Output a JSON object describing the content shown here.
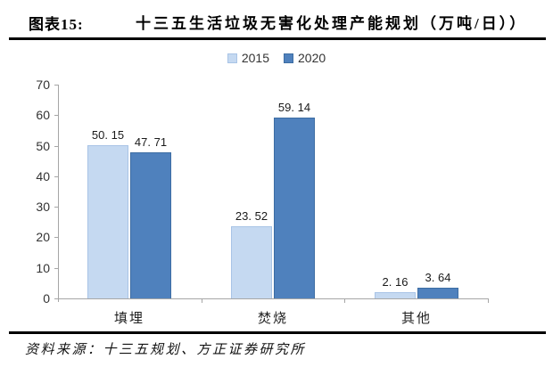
{
  "header": {
    "figure_label": "图表15:",
    "title": "十三五生活垃圾无害化处理产能规划（万吨/日））"
  },
  "legend": {
    "items": [
      {
        "label": "2015",
        "color": "#C5D9F1",
        "border": "#A9C4E6"
      },
      {
        "label": "2020",
        "color": "#4F81BD",
        "border": "#3D6DA3"
      }
    ]
  },
  "chart_data": {
    "type": "bar",
    "title": "十三五生活垃圾无害化处理产能规划（万吨/日））",
    "categories": [
      "填埋",
      "焚烧",
      "其他"
    ],
    "series": [
      {
        "name": "2015",
        "color": "#C5D9F1",
        "border": "#A9C4E6",
        "values": [
          50.15,
          23.52,
          2.16
        ],
        "value_labels": [
          "50. 15",
          "23. 52",
          "2. 16"
        ]
      },
      {
        "name": "2020",
        "color": "#4F81BD",
        "border": "#3D6DA3",
        "values": [
          47.71,
          59.14,
          3.64
        ],
        "value_labels": [
          "47. 71",
          "59. 14",
          "3. 64"
        ]
      }
    ],
    "xlabel": "",
    "ylabel": "",
    "ylim": [
      0,
      70
    ],
    "ytick_interval": 10,
    "ytick_labels": [
      "0",
      "10",
      "20",
      "30",
      "40",
      "50",
      "60",
      "70"
    ],
    "grid": "off",
    "legend_position": "top-center"
  },
  "footer": {
    "source": "资料来源：十三五规划、方正证券研究所"
  },
  "colors": {
    "axis": "#a6a6a6",
    "rule": "#000000",
    "series_2015": "#C5D9F1",
    "series_2020": "#4F81BD"
  }
}
